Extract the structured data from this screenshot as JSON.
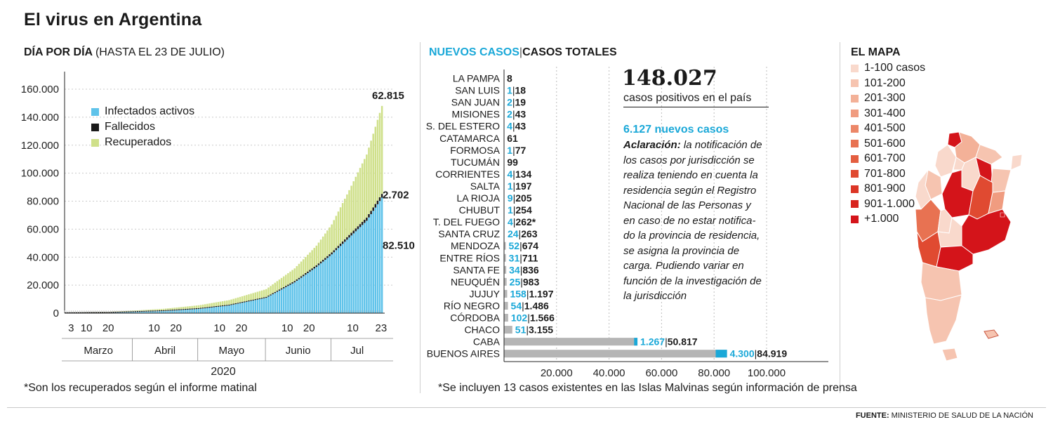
{
  "header": {
    "title": "El virus en Argentina"
  },
  "left_panel": {
    "subtitle_bold": "DÍA POR DÍA",
    "subtitle_light": "(HASTA EL 23 DE JULIO)",
    "footnote": "*Son los recuperados según el informe matinal",
    "year": "2020"
  },
  "middle_panel": {
    "title_new": "NUEVOS CASOS",
    "title_sep": "|",
    "title_total": "CASOS TOTALES",
    "footnote": "*Se incluyen 13 casos existentes en las Islas Malvinas según información de prensa"
  },
  "summary": {
    "total_cases": "148.027",
    "total_cases_caption": "casos positivos en el país",
    "new_cases": "6.127 nuevos casos",
    "note_bold": "Aclaración:",
    "note_lines": [
      " la notificación de",
      "los casos por jurisdicción se",
      "realiza teniendo en cuenta la",
      "residencia según el Registro",
      "Nacional de las Personas y",
      "en caso de no estar notifica-",
      "do la provincia de residencia,",
      "se asigna la provincia de",
      "carga. Pudiendo variar en",
      "función de la investigación de",
      "la jurisdicción"
    ]
  },
  "map_panel": {
    "title": "EL MAPA",
    "legend": [
      {
        "label": "1-100 casos",
        "color": "#f9d9cc"
      },
      {
        "label": "101-200",
        "color": "#f6c4b0"
      },
      {
        "label": "201-300",
        "color": "#f3b198"
      },
      {
        "label": "301-400",
        "color": "#f09c80"
      },
      {
        "label": "401-500",
        "color": "#ec8768"
      },
      {
        "label": "501-600",
        "color": "#e87252"
      },
      {
        "label": "601-700",
        "color": "#e45e40"
      },
      {
        "label": "701-800",
        "color": "#e04a31"
      },
      {
        "label": "801-900",
        "color": "#dc3626"
      },
      {
        "label": "901-1.000",
        "color": "#d8241e"
      },
      {
        "label": "+1.000",
        "color": "#d4141a"
      }
    ]
  },
  "footer": {
    "source_label": "FUENTE:",
    "source_text": "MINISTERIO DE SALUD DE LA NACIÓN"
  },
  "chart_data": [
    {
      "type": "area",
      "title": "DÍA POR DÍA (HASTA EL 23 DE JULIO)",
      "xlabel": "2020",
      "ylabel": "",
      "ylim": [
        0,
        170000
      ],
      "y_ticks": [
        0,
        20000,
        40000,
        60000,
        80000,
        100000,
        120000,
        140000,
        160000
      ],
      "y_tick_labels": [
        "0",
        "20.000",
        "40.000",
        "60.000",
        "80.000",
        "100.000",
        "120.000",
        "140.000",
        "160.000"
      ],
      "x_day_ticks": [
        {
          "day": 3,
          "label": "3"
        },
        {
          "day": 10,
          "label": "10"
        },
        {
          "day": 20,
          "label": "20"
        },
        {
          "day": 41,
          "label": "10"
        },
        {
          "day": 51,
          "label": "20"
        },
        {
          "day": 71,
          "label": "10"
        },
        {
          "day": 81,
          "label": "20"
        },
        {
          "day": 102,
          "label": "10"
        },
        {
          "day": 112,
          "label": "20"
        },
        {
          "day": 132,
          "label": "10"
        },
        {
          "day": 145,
          "label": "23"
        }
      ],
      "months": [
        {
          "label": "Marzo",
          "start": 0,
          "end": 31
        },
        {
          "label": "Abril",
          "start": 31,
          "end": 61
        },
        {
          "label": "Mayo",
          "start": 61,
          "end": 92
        },
        {
          "label": "Junio",
          "start": 92,
          "end": 122
        },
        {
          "label": "Jul",
          "start": 122,
          "end": 146
        }
      ],
      "days_total": 146,
      "legend_location": "top-left",
      "legend": [
        {
          "label": "Infectados activos",
          "color": "#5fc3ea"
        },
        {
          "label": "Fallecidos",
          "color": "#1a1a1a"
        },
        {
          "label": "Recuperados",
          "color": "#cfe08a"
        }
      ],
      "series": [
        {
          "name": "Infectados activos",
          "points": [
            [
              0,
              0
            ],
            [
              20,
              300
            ],
            [
              31,
              800
            ],
            [
              45,
              1500
            ],
            [
              61,
              3000
            ],
            [
              75,
              5500
            ],
            [
              92,
              11000
            ],
            [
              105,
              22000
            ],
            [
              115,
              33000
            ],
            [
              122,
              42000
            ],
            [
              130,
              54000
            ],
            [
              138,
              66000
            ],
            [
              145,
              82510
            ]
          ]
        },
        {
          "name": "Fallecidos",
          "points": [
            [
              0,
              0
            ],
            [
              31,
              50
            ],
            [
              61,
              350
            ],
            [
              92,
              650
            ],
            [
              122,
              1400
            ],
            [
              145,
              2702
            ]
          ]
        },
        {
          "name": "Recuperados",
          "points": [
            [
              0,
              0
            ],
            [
              20,
              100
            ],
            [
              31,
              400
            ],
            [
              45,
              1000
            ],
            [
              61,
              2000
            ],
            [
              75,
              3200
            ],
            [
              92,
              5500
            ],
            [
              105,
              9000
            ],
            [
              115,
              14000
            ],
            [
              122,
              20000
            ],
            [
              130,
              32000
            ],
            [
              138,
              45000
            ],
            [
              145,
              62815
            ]
          ]
        }
      ],
      "annotations": [
        "62.815",
        "2.702",
        "82.510"
      ]
    },
    {
      "type": "bar",
      "orientation": "horizontal",
      "title": "NUEVOS CASOS | CASOS TOTALES",
      "xlim": [
        0,
        100000
      ],
      "x_ticks": [
        20000,
        40000,
        60000,
        80000,
        100000
      ],
      "x_tick_labels": [
        "20.000",
        "40.000",
        "60.000",
        "80.000",
        "100.000"
      ],
      "categories": [
        "LA PAMPA",
        "SAN LUIS",
        "SAN JUAN",
        "MISIONES",
        "S. DEL ESTERO",
        "CATAMARCA",
        "FORMOSA",
        "TUCUMÁN",
        "CORRIENTES",
        "SALTA",
        "LA RIOJA",
        "CHUBUT",
        "T. DEL FUEGO",
        "SANTA CRUZ",
        "MENDOZA",
        "ENTRE RÍOS",
        "SANTA FE",
        "NEUQUÉN",
        "JUJUY",
        "RÍO NEGRO",
        "CÓRDOBA",
        "CHACO",
        "CABA",
        "BUENOS AIRES"
      ],
      "series": [
        {
          "name": "Casos totales",
          "values": [
            8,
            18,
            19,
            43,
            43,
            61,
            77,
            99,
            134,
            197,
            205,
            254,
            262,
            263,
            674,
            711,
            836,
            983,
            1197,
            1486,
            1566,
            3155,
            50817,
            84919
          ]
        },
        {
          "name": "Nuevos casos",
          "values": [
            0,
            1,
            2,
            2,
            4,
            0,
            1,
            0,
            4,
            1,
            9,
            1,
            4,
            24,
            52,
            31,
            34,
            25,
            158,
            54,
            102,
            51,
            1267,
            4300
          ]
        }
      ],
      "label_new": [
        "",
        "1",
        "2",
        "2",
        "4",
        "",
        "1",
        "",
        "4",
        "1",
        "9",
        "1",
        "4",
        "24",
        "52",
        "31",
        "34",
        "25",
        "158",
        "54",
        "102",
        "51",
        "1.267",
        "4.300"
      ],
      "label_total": [
        "8",
        "18",
        "19",
        "43",
        "43",
        "61",
        "77",
        "99",
        "134",
        "197",
        "205",
        "254",
        "262*",
        "263",
        "674",
        "711",
        "836",
        "983",
        "1.197",
        "1.486",
        "1.566",
        "3.155",
        "50.817",
        "84.919"
      ],
      "colors": {
        "total": "#b5b5b5",
        "new": "#1aa8d8"
      }
    }
  ]
}
